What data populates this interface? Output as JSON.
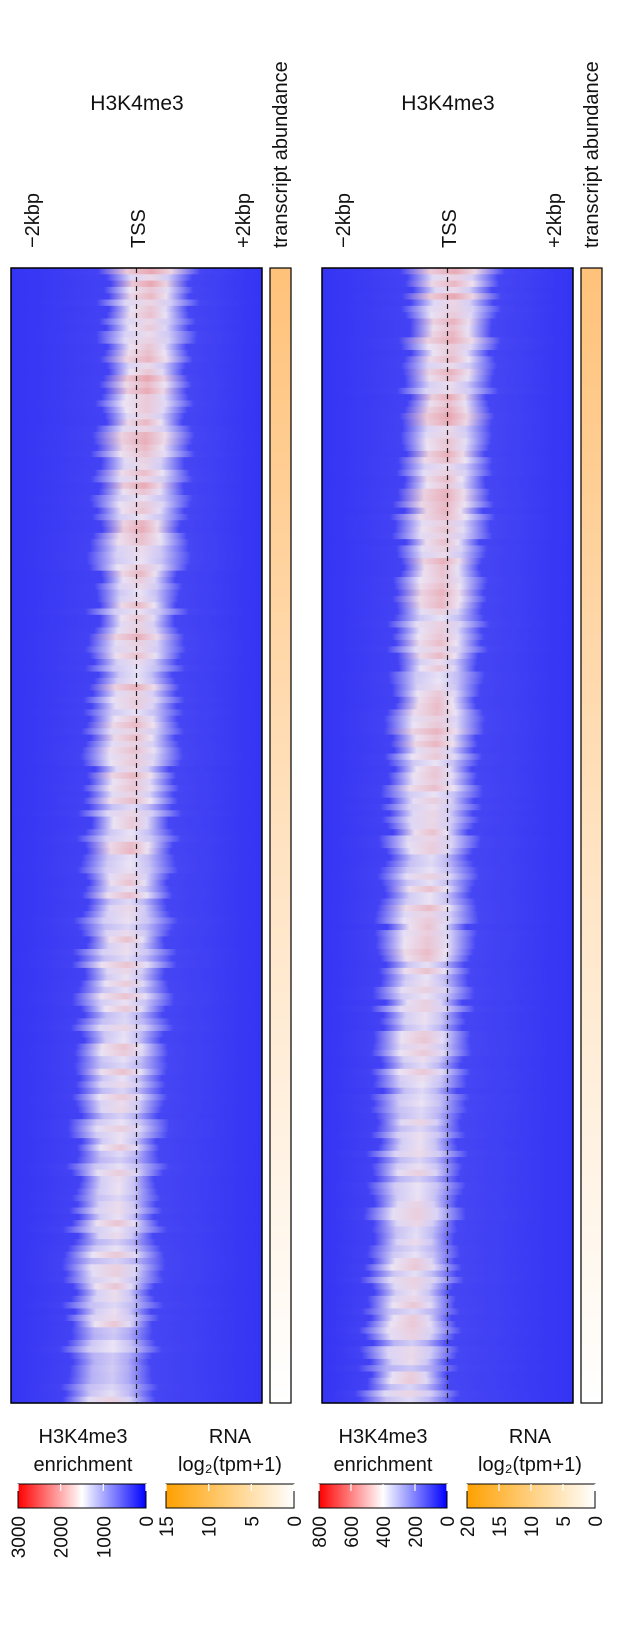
{
  "chart_data": [
    {
      "type": "heatmap",
      "title": "H3K4me3",
      "x_ticks": [
        "−2kbp",
        "TSS",
        "+2kbp"
      ],
      "rna_strip_label": "transcript abundance",
      "legend": {
        "title_line1": "H3K4me3",
        "title_line2": "enrichment",
        "ticks": [
          3000,
          2000,
          1000,
          0
        ],
        "tick_labels": [
          "3000",
          "2000",
          "1000",
          "0"
        ],
        "colors": [
          "#ff0000",
          "#ffffff",
          "#0000ff"
        ]
      },
      "rna_legend": {
        "title_line1": "RNA",
        "title_line2": "log₂(tpm+1)",
        "ticks": [
          15,
          10,
          5,
          0
        ],
        "tick_labels": [
          "15",
          "10",
          "5",
          "0"
        ],
        "colors": [
          "#ffa000",
          "#ffffff"
        ]
      }
    },
    {
      "type": "heatmap",
      "title": "H3K4me3",
      "x_ticks": [
        "−2kbp",
        "TSS",
        "+2kbp"
      ],
      "rna_strip_label": "transcript abundance",
      "legend": {
        "title_line1": "H3K4me3",
        "title_line2": "enrichment",
        "ticks": [
          800,
          600,
          400,
          200,
          0
        ],
        "tick_labels": [
          "800",
          "600",
          "400",
          "200",
          "0"
        ],
        "colors": [
          "#ff0000",
          "#ffffff",
          "#0000ff"
        ]
      },
      "rna_legend": {
        "title_line1": "RNA",
        "title_line2": "log₂(tpm+1)",
        "ticks": [
          20,
          15,
          10,
          5,
          0
        ],
        "tick_labels": [
          "20",
          "15",
          "10",
          "5",
          "0"
        ],
        "colors": [
          "#ffa000",
          "#ffffff"
        ]
      }
    }
  ]
}
